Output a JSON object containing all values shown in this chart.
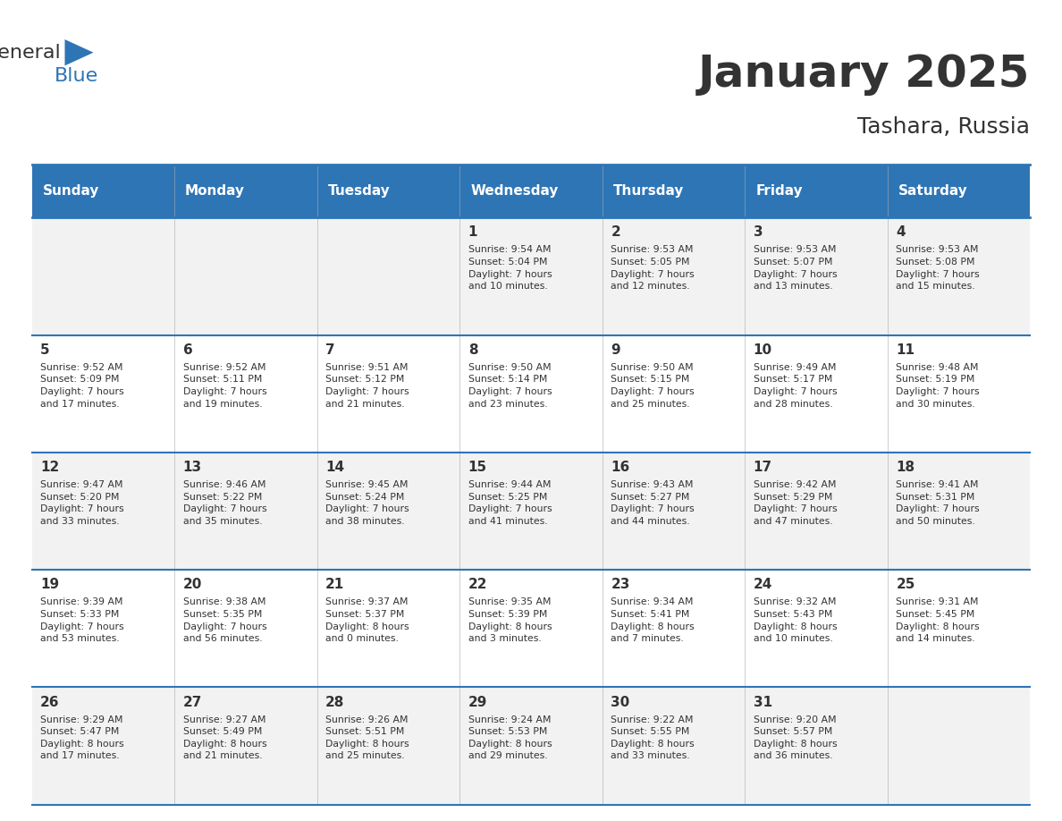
{
  "title": "January 2025",
  "subtitle": "Tashara, Russia",
  "days_of_week": [
    "Sunday",
    "Monday",
    "Tuesday",
    "Wednesday",
    "Thursday",
    "Friday",
    "Saturday"
  ],
  "header_bg": "#2E75B6",
  "header_text": "#FFFFFF",
  "cell_bg_odd": "#F2F2F2",
  "cell_bg_even": "#FFFFFF",
  "border_color": "#2E75B6",
  "text_color": "#333333",
  "title_color": "#333333",
  "logo_general_color": "#333333",
  "logo_blue_color": "#2E75B6",
  "weeks": [
    [
      {
        "day": null,
        "text": ""
      },
      {
        "day": null,
        "text": ""
      },
      {
        "day": null,
        "text": ""
      },
      {
        "day": 1,
        "text": "Sunrise: 9:54 AM\nSunset: 5:04 PM\nDaylight: 7 hours\nand 10 minutes."
      },
      {
        "day": 2,
        "text": "Sunrise: 9:53 AM\nSunset: 5:05 PM\nDaylight: 7 hours\nand 12 minutes."
      },
      {
        "day": 3,
        "text": "Sunrise: 9:53 AM\nSunset: 5:07 PM\nDaylight: 7 hours\nand 13 minutes."
      },
      {
        "day": 4,
        "text": "Sunrise: 9:53 AM\nSunset: 5:08 PM\nDaylight: 7 hours\nand 15 minutes."
      }
    ],
    [
      {
        "day": 5,
        "text": "Sunrise: 9:52 AM\nSunset: 5:09 PM\nDaylight: 7 hours\nand 17 minutes."
      },
      {
        "day": 6,
        "text": "Sunrise: 9:52 AM\nSunset: 5:11 PM\nDaylight: 7 hours\nand 19 minutes."
      },
      {
        "day": 7,
        "text": "Sunrise: 9:51 AM\nSunset: 5:12 PM\nDaylight: 7 hours\nand 21 minutes."
      },
      {
        "day": 8,
        "text": "Sunrise: 9:50 AM\nSunset: 5:14 PM\nDaylight: 7 hours\nand 23 minutes."
      },
      {
        "day": 9,
        "text": "Sunrise: 9:50 AM\nSunset: 5:15 PM\nDaylight: 7 hours\nand 25 minutes."
      },
      {
        "day": 10,
        "text": "Sunrise: 9:49 AM\nSunset: 5:17 PM\nDaylight: 7 hours\nand 28 minutes."
      },
      {
        "day": 11,
        "text": "Sunrise: 9:48 AM\nSunset: 5:19 PM\nDaylight: 7 hours\nand 30 minutes."
      }
    ],
    [
      {
        "day": 12,
        "text": "Sunrise: 9:47 AM\nSunset: 5:20 PM\nDaylight: 7 hours\nand 33 minutes."
      },
      {
        "day": 13,
        "text": "Sunrise: 9:46 AM\nSunset: 5:22 PM\nDaylight: 7 hours\nand 35 minutes."
      },
      {
        "day": 14,
        "text": "Sunrise: 9:45 AM\nSunset: 5:24 PM\nDaylight: 7 hours\nand 38 minutes."
      },
      {
        "day": 15,
        "text": "Sunrise: 9:44 AM\nSunset: 5:25 PM\nDaylight: 7 hours\nand 41 minutes."
      },
      {
        "day": 16,
        "text": "Sunrise: 9:43 AM\nSunset: 5:27 PM\nDaylight: 7 hours\nand 44 minutes."
      },
      {
        "day": 17,
        "text": "Sunrise: 9:42 AM\nSunset: 5:29 PM\nDaylight: 7 hours\nand 47 minutes."
      },
      {
        "day": 18,
        "text": "Sunrise: 9:41 AM\nSunset: 5:31 PM\nDaylight: 7 hours\nand 50 minutes."
      }
    ],
    [
      {
        "day": 19,
        "text": "Sunrise: 9:39 AM\nSunset: 5:33 PM\nDaylight: 7 hours\nand 53 minutes."
      },
      {
        "day": 20,
        "text": "Sunrise: 9:38 AM\nSunset: 5:35 PM\nDaylight: 7 hours\nand 56 minutes."
      },
      {
        "day": 21,
        "text": "Sunrise: 9:37 AM\nSunset: 5:37 PM\nDaylight: 8 hours\nand 0 minutes."
      },
      {
        "day": 22,
        "text": "Sunrise: 9:35 AM\nSunset: 5:39 PM\nDaylight: 8 hours\nand 3 minutes."
      },
      {
        "day": 23,
        "text": "Sunrise: 9:34 AM\nSunset: 5:41 PM\nDaylight: 8 hours\nand 7 minutes."
      },
      {
        "day": 24,
        "text": "Sunrise: 9:32 AM\nSunset: 5:43 PM\nDaylight: 8 hours\nand 10 minutes."
      },
      {
        "day": 25,
        "text": "Sunrise: 9:31 AM\nSunset: 5:45 PM\nDaylight: 8 hours\nand 14 minutes."
      }
    ],
    [
      {
        "day": 26,
        "text": "Sunrise: 9:29 AM\nSunset: 5:47 PM\nDaylight: 8 hours\nand 17 minutes."
      },
      {
        "day": 27,
        "text": "Sunrise: 9:27 AM\nSunset: 5:49 PM\nDaylight: 8 hours\nand 21 minutes."
      },
      {
        "day": 28,
        "text": "Sunrise: 9:26 AM\nSunset: 5:51 PM\nDaylight: 8 hours\nand 25 minutes."
      },
      {
        "day": 29,
        "text": "Sunrise: 9:24 AM\nSunset: 5:53 PM\nDaylight: 8 hours\nand 29 minutes."
      },
      {
        "day": 30,
        "text": "Sunrise: 9:22 AM\nSunset: 5:55 PM\nDaylight: 8 hours\nand 33 minutes."
      },
      {
        "day": 31,
        "text": "Sunrise: 9:20 AM\nSunset: 5:57 PM\nDaylight: 8 hours\nand 36 minutes."
      },
      {
        "day": null,
        "text": ""
      }
    ]
  ]
}
